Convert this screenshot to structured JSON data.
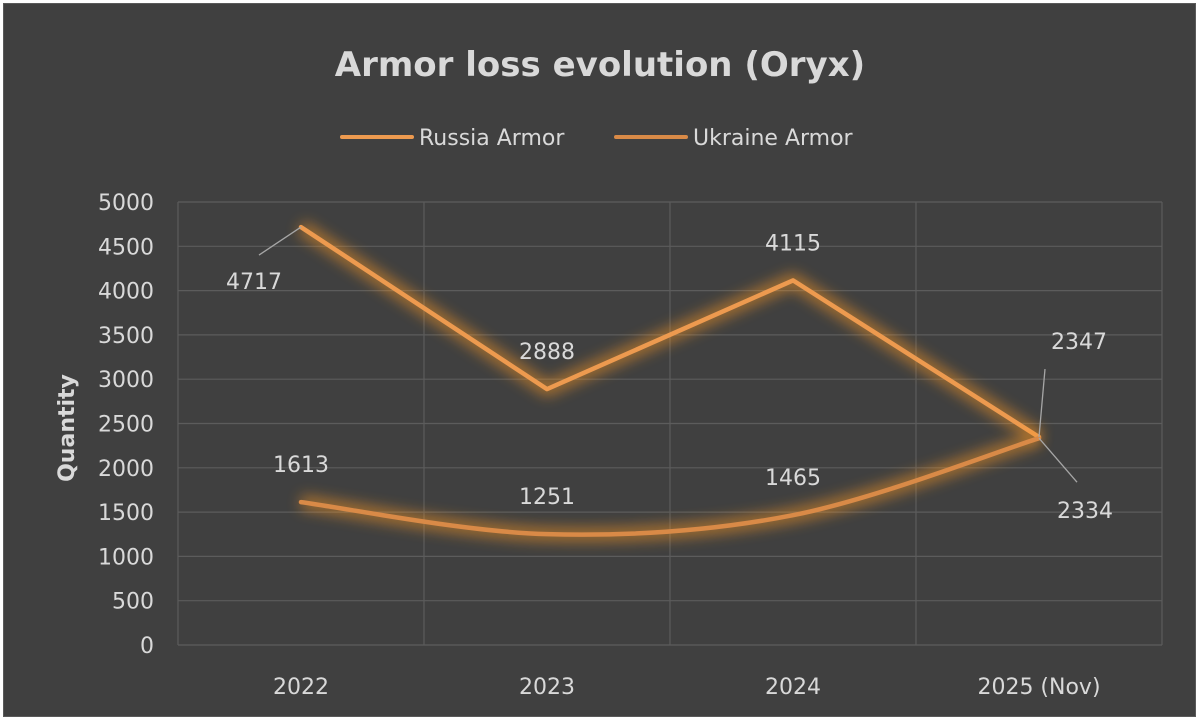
{
  "chart_data": {
    "type": "line",
    "title": "Armor loss evolution (Oryx)",
    "ylabel": "Quantity",
    "xlabel": "",
    "categories": [
      "2022",
      "2023",
      "2024",
      "2025 (Nov)"
    ],
    "ylim": [
      0,
      5000
    ],
    "yticks": [
      "0",
      "500",
      "1000",
      "1500",
      "2000",
      "2500",
      "3000",
      "3500",
      "4000",
      "4500",
      "5000"
    ],
    "grid": true,
    "legend_position": "top",
    "series": [
      {
        "name": "Russia Armor",
        "values": [
          4717,
          2888,
          4115,
          2347
        ],
        "labels": [
          "4717",
          "2888",
          "4115",
          "2347"
        ],
        "color": "#ed9a4f"
      },
      {
        "name": "Ukraine Armor",
        "values": [
          1613,
          1251,
          1465,
          2334
        ],
        "labels": [
          "1613",
          "1251",
          "1465",
          "2334"
        ],
        "color": "#d98a47"
      }
    ],
    "colors": {
      "background": "#404040",
      "text": "#d9d9d9",
      "grid": "#5c5c5c",
      "glow": "#ff9a20"
    }
  }
}
